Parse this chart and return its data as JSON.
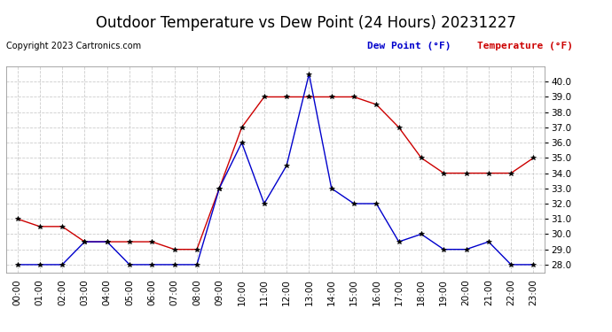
{
  "title": "Outdoor Temperature vs Dew Point (24 Hours) 20231227",
  "copyright": "Copyright 2023 Cartronics.com",
  "legend_dew": "Dew Point (°F)",
  "legend_temp": "Temperature (°F)",
  "hours": [
    "00:00",
    "01:00",
    "02:00",
    "03:00",
    "04:00",
    "05:00",
    "06:00",
    "07:00",
    "08:00",
    "09:00",
    "10:00",
    "11:00",
    "12:00",
    "13:00",
    "14:00",
    "15:00",
    "16:00",
    "17:00",
    "18:00",
    "19:00",
    "20:00",
    "21:00",
    "22:00",
    "23:00"
  ],
  "temperature": [
    31.0,
    30.5,
    30.5,
    29.5,
    29.5,
    29.5,
    29.5,
    29.0,
    29.0,
    33.0,
    37.0,
    39.0,
    39.0,
    39.0,
    39.0,
    39.0,
    38.5,
    37.0,
    35.0,
    34.0,
    34.0,
    34.0,
    34.0,
    35.0
  ],
  "dew_point": [
    28.0,
    28.0,
    28.0,
    29.5,
    29.5,
    28.0,
    28.0,
    28.0,
    28.0,
    33.0,
    36.0,
    32.0,
    34.5,
    40.5,
    33.0,
    32.0,
    32.0,
    29.5,
    30.0,
    29.0,
    29.0,
    29.5,
    28.0,
    28.0
  ],
  "temp_color": "#cc0000",
  "dew_color": "#0000cc",
  "ylim_min": 27.5,
  "ylim_max": 41.0,
  "yticks": [
    28.0,
    29.0,
    30.0,
    31.0,
    32.0,
    33.0,
    34.0,
    35.0,
    36.0,
    37.0,
    38.0,
    39.0,
    40.0
  ],
  "background_color": "#ffffff",
  "grid_color": "#cccccc",
  "title_fontsize": 12,
  "copyright_fontsize": 7,
  "legend_fontsize": 8,
  "tick_fontsize": 7.5
}
